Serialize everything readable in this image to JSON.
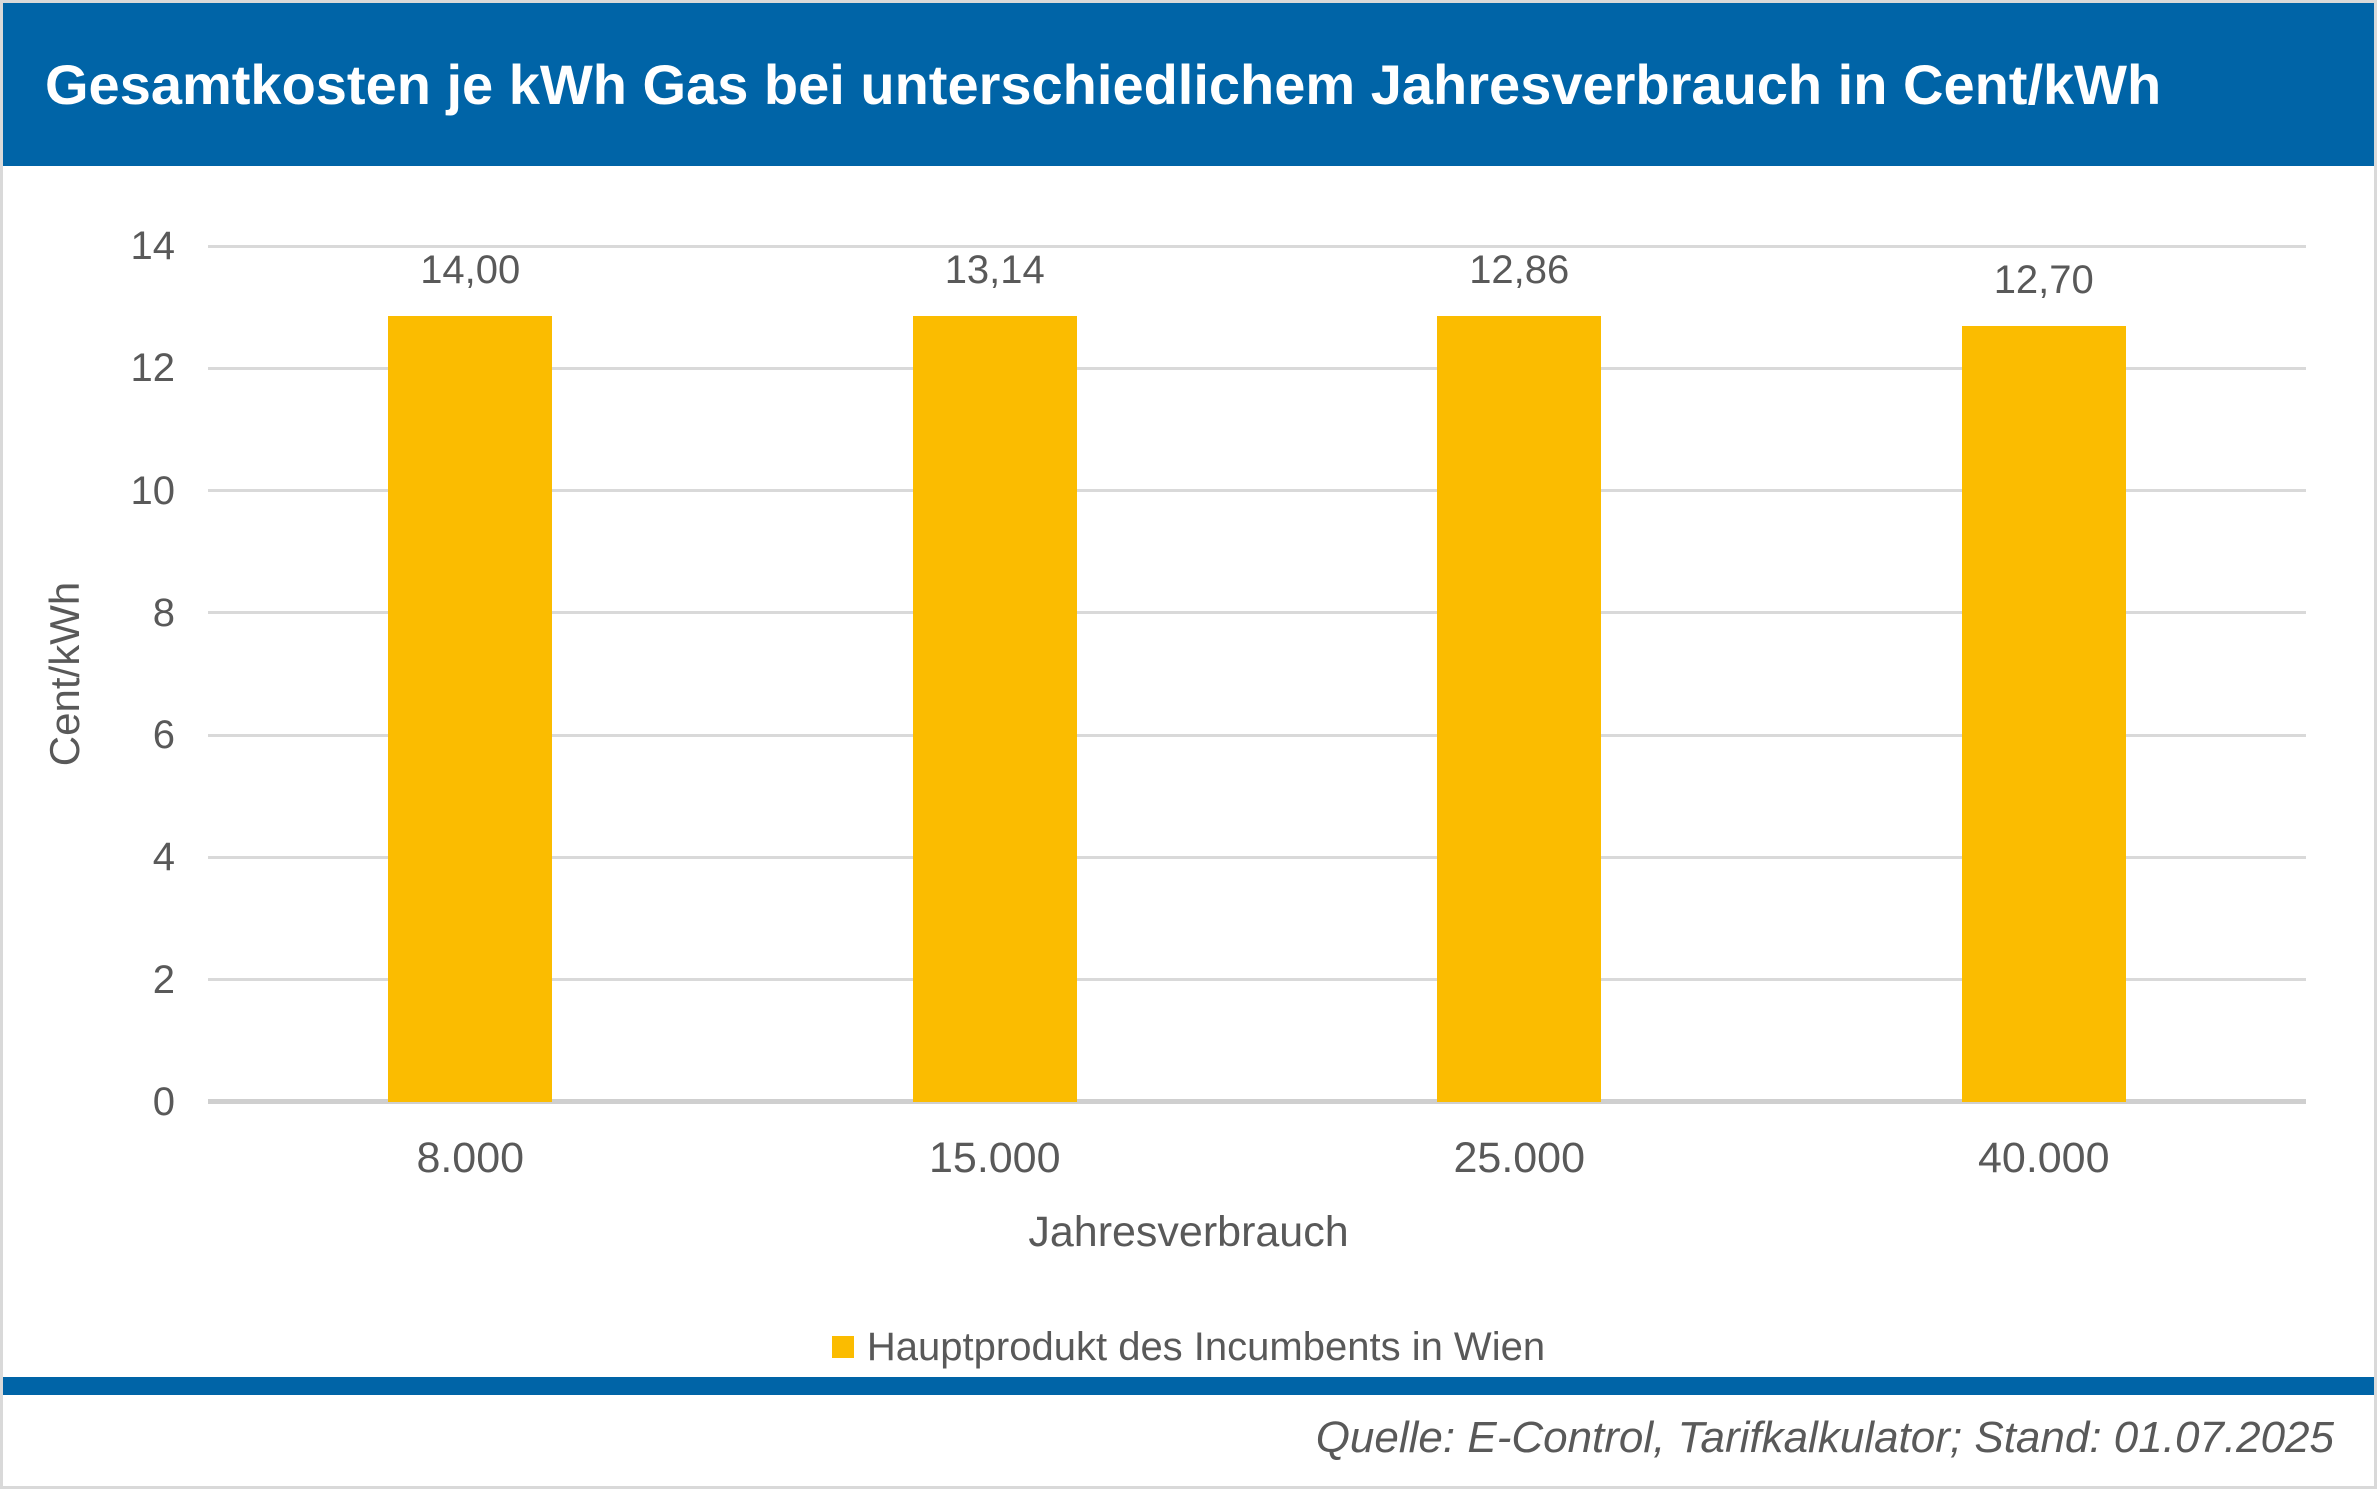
{
  "header": {
    "title": "Gesamtkosten je kWh Gas bei unterschiedlichem Jahresverbrauch in Cent/kWh"
  },
  "chart_data": {
    "type": "bar",
    "title": "Gesamtkosten je kWh Gas bei unterschiedlichem Jahresverbrauch in Cent/kWh",
    "categories": [
      "8.000",
      "15.000",
      "25.000",
      "40.000"
    ],
    "series": [
      {
        "name": "Hauptprodukt des Incumbents in Wien",
        "values": [
          14.0,
          13.14,
          12.86,
          12.7
        ]
      }
    ],
    "value_labels": [
      "14,00",
      "13,14",
      "12,86",
      "12,70"
    ],
    "xlabel": "Jahresverbrauch",
    "ylabel": "Cent/kWh",
    "ylim": [
      0,
      14
    ],
    "yticks": [
      0,
      2,
      4,
      6,
      8,
      10,
      12,
      14
    ],
    "grid": true,
    "legend_position": "bottom",
    "bar_color": "#FBBC00"
  },
  "footer": {
    "source": "Quelle: E-Control, Tarifkalkulator; Stand: 01.07.2025"
  },
  "colors": {
    "header_blue": "#0064A7",
    "separator_blue": "#0064A7",
    "bar_yellow": "#FBBC00",
    "text_gray": "#595959",
    "title_text": "#FFFFFF",
    "gridline": "#D9D9D9",
    "axis_line": "#CFCFCF",
    "frame_border": "#D9D9D9"
  }
}
